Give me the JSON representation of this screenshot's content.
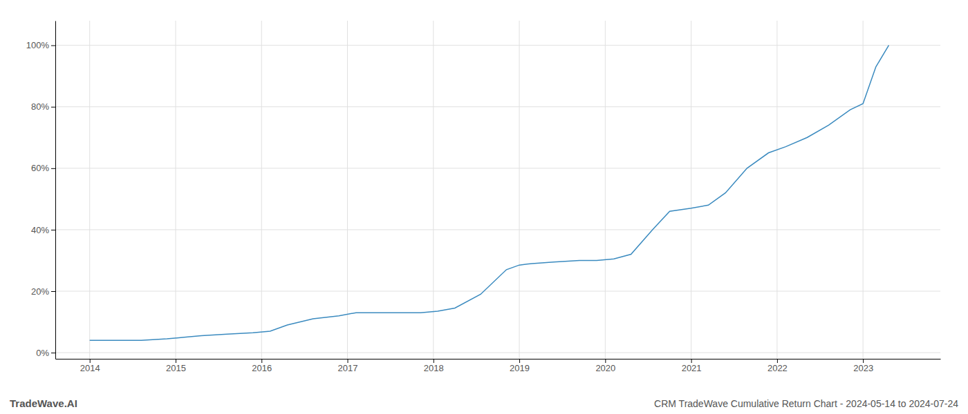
{
  "chart_data": {
    "type": "line",
    "title": "CRM TradeWave Cumulative Return Chart - 2024-05-14 to 2024-07-24",
    "annotations": [
      "TradeWave.AI"
    ],
    "x": [
      2014.0,
      2014.15,
      2014.3,
      2014.6,
      2014.9,
      2015.1,
      2015.3,
      2015.6,
      2015.9,
      2016.1,
      2016.3,
      2016.6,
      2016.9,
      2017.1,
      2017.3,
      2017.6,
      2017.85,
      2018.05,
      2018.25,
      2018.55,
      2018.85,
      2019.0,
      2019.15,
      2019.4,
      2019.7,
      2019.9,
      2020.1,
      2020.3,
      2020.55,
      2020.75,
      2021.0,
      2021.2,
      2021.4,
      2021.65,
      2021.9,
      2022.1,
      2022.35,
      2022.6,
      2022.85,
      2023.0,
      2023.15,
      2023.3
    ],
    "values": [
      4,
      4,
      4,
      4,
      4.5,
      5,
      5.5,
      6,
      6.5,
      7,
      9,
      11,
      12,
      13,
      13,
      13,
      13,
      13.5,
      14.5,
      19,
      27,
      28.5,
      29,
      29.5,
      30,
      30,
      30.5,
      32,
      40,
      46,
      47,
      48,
      52,
      60,
      65,
      67,
      70,
      74,
      79,
      81,
      93,
      100
    ],
    "color": "#3a8abf",
    "xlim": [
      2013.6,
      2023.9
    ],
    "xticks": [
      2014,
      2015,
      2016,
      2017,
      2018,
      2019,
      2020,
      2021,
      2022,
      2023
    ],
    "ylim": [
      -2,
      108
    ],
    "yticks": [
      {
        "value": 0,
        "label": "0%"
      },
      {
        "value": 20,
        "label": "20%"
      },
      {
        "value": 40,
        "label": "40%"
      },
      {
        "value": 60,
        "label": "60%"
      },
      {
        "value": 80,
        "label": "80%"
      },
      {
        "value": 100,
        "label": "100%"
      }
    ],
    "grid": true
  }
}
